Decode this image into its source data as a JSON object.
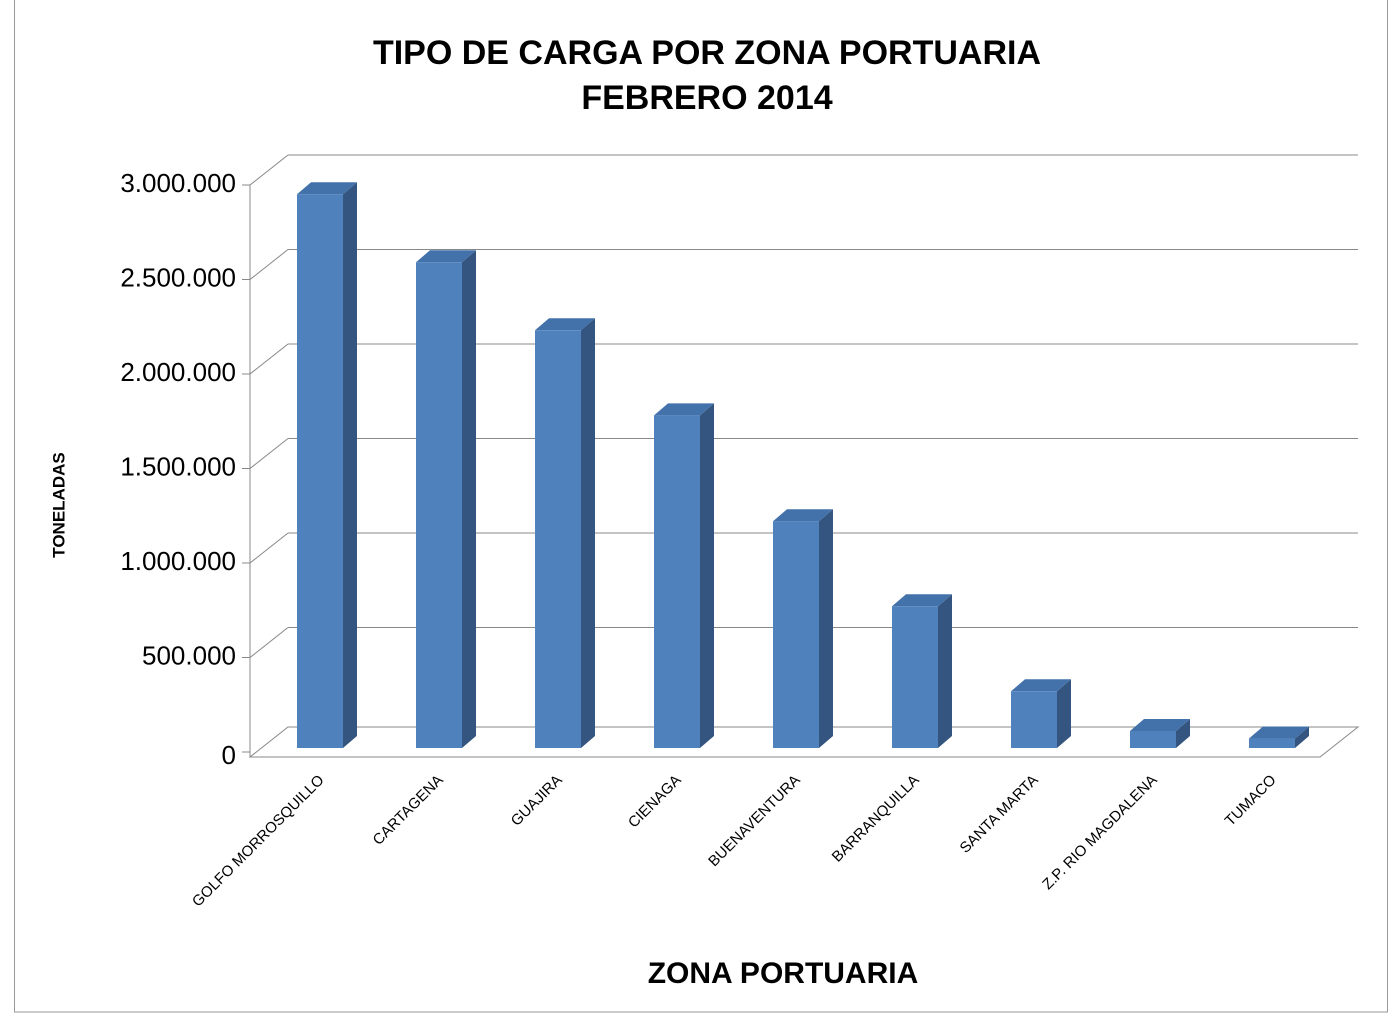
{
  "chart_data": {
    "type": "bar",
    "title": [
      "TIPO DE CARGA POR ZONA PORTUARIA",
      "FEBRERO 2014"
    ],
    "x_label": "ZONA PORTUARIA",
    "y_label": "TONELADAS",
    "categories": [
      "GOLFO MORROSQUILLO",
      "CARTAGENA",
      "GUAJIRA",
      "CIENAGA",
      "BUENAVENTURA",
      "BARRANQUILLA",
      "SANTA MARTA",
      "Z.P. RIO MAGDALENA",
      "TUMACO"
    ],
    "values": [
      2930000,
      2570000,
      2210000,
      1760000,
      1200000,
      750000,
      300000,
      90000,
      50000
    ],
    "color": "#4f81bd",
    "ylim": [
      0,
      3000000
    ],
    "yticks": [
      0,
      {
        "value": 500000,
        "label": "500.000"
      },
      {
        "value": 1000000,
        "label": "1.000.000"
      },
      {
        "value": 1500000,
        "label": "1.500.000"
      },
      {
        "value": 2000000,
        "label": "2.000.000"
      },
      {
        "value": 2500000,
        "label": "2.500.000"
      },
      {
        "value": 3000000,
        "label": "3.000.000"
      }
    ],
    "grid": true
  }
}
